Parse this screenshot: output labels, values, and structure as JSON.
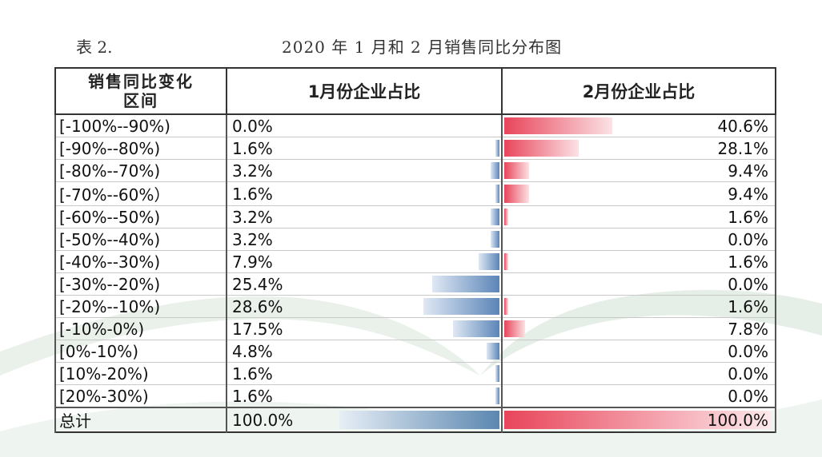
{
  "caption": {
    "label": "表 2.",
    "title": "2020 年 1 月和 2 月销售同比分布图"
  },
  "header": {
    "col1": "销售同比变化区间",
    "col1_line1": "销售同比变化",
    "col1_line2": "区间",
    "col2": "1月份企业占比",
    "col3": "2月份企业占比"
  },
  "colors": {
    "blue_bar": "#5b85b8",
    "red_bar": "#e8455a",
    "watermark": "#3f8a56"
  },
  "rows": [
    {
      "range": "[-100%--90%)",
      "jan": "0.0%",
      "feb": "40.6%",
      "jan_v": 0.0,
      "feb_v": 40.6
    },
    {
      "range": "[-90%--80%)",
      "jan": "1.6%",
      "feb": "28.1%",
      "jan_v": 1.6,
      "feb_v": 28.1
    },
    {
      "range": "[-80%--70%)",
      "jan": "3.2%",
      "feb": "9.4%",
      "jan_v": 3.2,
      "feb_v": 9.4
    },
    {
      "range": "[-70%--60%）",
      "jan": "1.6%",
      "feb": "9.4%",
      "jan_v": 1.6,
      "feb_v": 9.4
    },
    {
      "range": "[-60%--50%)",
      "jan": "3.2%",
      "feb": "1.6%",
      "jan_v": 3.2,
      "feb_v": 1.6
    },
    {
      "range": "[-50%--40%)",
      "jan": "3.2%",
      "feb": "0.0%",
      "jan_v": 3.2,
      "feb_v": 0.0
    },
    {
      "range": "[-40%--30%)",
      "jan": "7.9%",
      "feb": "1.6%",
      "jan_v": 7.9,
      "feb_v": 1.6
    },
    {
      "range": "[-30%--20%)",
      "jan": "25.4%",
      "feb": "0.0%",
      "jan_v": 25.4,
      "feb_v": 0.0
    },
    {
      "range": "[-20%--10%)",
      "jan": "28.6%",
      "feb": "1.6%",
      "jan_v": 28.6,
      "feb_v": 1.6
    },
    {
      "range": "[-10%-0%)",
      "jan": "17.5%",
      "feb": "7.8%",
      "jan_v": 17.5,
      "feb_v": 7.8
    },
    {
      "range": "[0%-10%)",
      "jan": "4.8%",
      "feb": "0.0%",
      "jan_v": 4.8,
      "feb_v": 0.0
    },
    {
      "range": "[10%-20%)",
      "jan": "1.6%",
      "feb": "0.0%",
      "jan_v": 1.6,
      "feb_v": 0.0
    },
    {
      "range": "[20%-30%)",
      "jan": "1.6%",
      "feb": "0.0%",
      "jan_v": 1.6,
      "feb_v": 0.0
    }
  ],
  "total": {
    "label": "总计",
    "jan": "100.0%",
    "feb": "100.0%",
    "jan_v": 100.0,
    "feb_v": 100.0
  }
}
